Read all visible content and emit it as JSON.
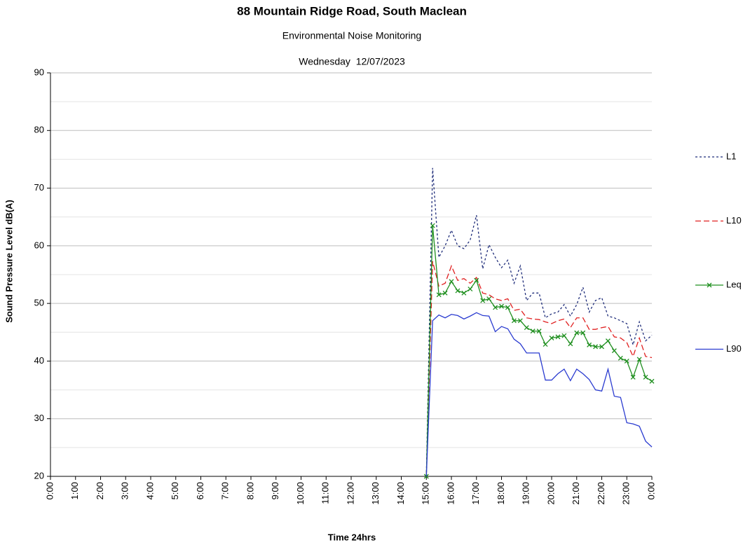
{
  "chart_data": {
    "type": "line",
    "title": "88 Mountain Ridge Road, South Maclean",
    "subtitle": "Environmental Noise Monitoring",
    "date_label": "Wednesday  12/07/2023",
    "x_label": "Time 24hrs",
    "y_label": "Sound Pressure Level dB(A)",
    "x": [
      15,
      15.25,
      15.5,
      15.75,
      16,
      16.25,
      16.5,
      16.75,
      17,
      17.25,
      17.5,
      17.75,
      18,
      18.25,
      18.5,
      18.75,
      19,
      19.25,
      19.5,
      19.75,
      20,
      20.25,
      20.5,
      20.75,
      21,
      21.25,
      21.5,
      21.75,
      22,
      22.25,
      22.5,
      22.75,
      23,
      23.25,
      23.5,
      23.75,
      24
    ],
    "series": [
      {
        "name": "L1",
        "color": "#1f2d7a",
        "dash": "3,3",
        "marker": "none",
        "values": [
          20,
          73.5,
          58,
          60,
          62.7,
          60,
          59.5,
          61,
          65.3,
          56,
          60.2,
          58,
          56.2,
          57.5,
          53.5,
          56.5,
          50.5,
          51.8,
          51.8,
          47.5,
          48.2,
          48.5,
          49.8,
          47.8,
          49.8,
          52.8,
          48.5,
          50.5,
          51,
          47.8,
          47.5,
          47,
          46.5,
          42.8,
          46.8,
          43.5,
          44.5
        ]
      },
      {
        "name": "L10",
        "color": "#e02020",
        "dash": "8,4",
        "marker": "none",
        "values": [
          20,
          57.3,
          53,
          53.5,
          56.5,
          54,
          54.3,
          53.5,
          54.5,
          51.8,
          51.5,
          50.8,
          50.5,
          50.8,
          48.8,
          49,
          47.5,
          47.3,
          47.2,
          46.8,
          46.5,
          47,
          47.3,
          45.8,
          47.5,
          47.5,
          45.5,
          45.5,
          45.8,
          46,
          44.2,
          44,
          43.2,
          40.8,
          44,
          40.8,
          40.6
        ]
      },
      {
        "name": "Leq",
        "color": "#1f8f1f",
        "dash": "none",
        "marker": "x",
        "values": [
          20,
          63.5,
          51.5,
          51.8,
          53.8,
          52.2,
          51.8,
          52.5,
          54,
          50.5,
          50.8,
          49.3,
          49.5,
          49.3,
          47,
          47,
          45.8,
          45.2,
          45.2,
          42.9,
          44,
          44.2,
          44.4,
          43,
          44.9,
          44.9,
          42.8,
          42.5,
          42.5,
          43.5,
          41.8,
          40.5,
          40,
          37.2,
          40.3,
          37.2,
          36.5
        ]
      },
      {
        "name": "L90",
        "color": "#2a3bd0",
        "dash": "none",
        "marker": "none",
        "values": [
          20,
          47,
          48,
          47.5,
          48.1,
          47.9,
          47.3,
          47.8,
          48.4,
          47.9,
          47.8,
          45.1,
          46,
          45.6,
          43.8,
          43,
          41.4,
          41.4,
          41.4,
          36.7,
          36.7,
          37.8,
          38.6,
          36.6,
          38.6,
          37.8,
          36.8,
          35,
          34.8,
          38.6,
          33.9,
          33.7,
          29.3,
          29.1,
          28.7,
          26.1,
          25.1
        ]
      }
    ],
    "xlim": [
      0,
      24
    ],
    "xticks": [
      {
        "value": 0,
        "label": "0:00"
      },
      {
        "value": 1,
        "label": "1:00"
      },
      {
        "value": 2,
        "label": "2:00"
      },
      {
        "value": 3,
        "label": "3:00"
      },
      {
        "value": 4,
        "label": "4:00"
      },
      {
        "value": 5,
        "label": "5:00"
      },
      {
        "value": 6,
        "label": "6:00"
      },
      {
        "value": 7,
        "label": "7:00"
      },
      {
        "value": 8,
        "label": "8:00"
      },
      {
        "value": 9,
        "label": "9:00"
      },
      {
        "value": 10,
        "label": "10:00"
      },
      {
        "value": 11,
        "label": "11:00"
      },
      {
        "value": 12,
        "label": "12:00"
      },
      {
        "value": 13,
        "label": "13:00"
      },
      {
        "value": 14,
        "label": "14:00"
      },
      {
        "value": 15,
        "label": "15:00"
      },
      {
        "value": 16,
        "label": "16:00"
      },
      {
        "value": 17,
        "label": "17:00"
      },
      {
        "value": 18,
        "label": "18:00"
      },
      {
        "value": 19,
        "label": "19:00"
      },
      {
        "value": 20,
        "label": "20:00"
      },
      {
        "value": 21,
        "label": "21:00"
      },
      {
        "value": 22,
        "label": "22:00"
      },
      {
        "value": 23,
        "label": "23:00"
      },
      {
        "value": 24,
        "label": "0:00"
      }
    ],
    "ylim": [
      20,
      90
    ],
    "yticks": [
      20,
      30,
      40,
      50,
      60,
      70,
      80,
      90
    ],
    "minor_yticks": [
      25,
      35,
      45,
      55,
      65,
      75,
      85
    ],
    "grid": true,
    "legend": "right"
  }
}
